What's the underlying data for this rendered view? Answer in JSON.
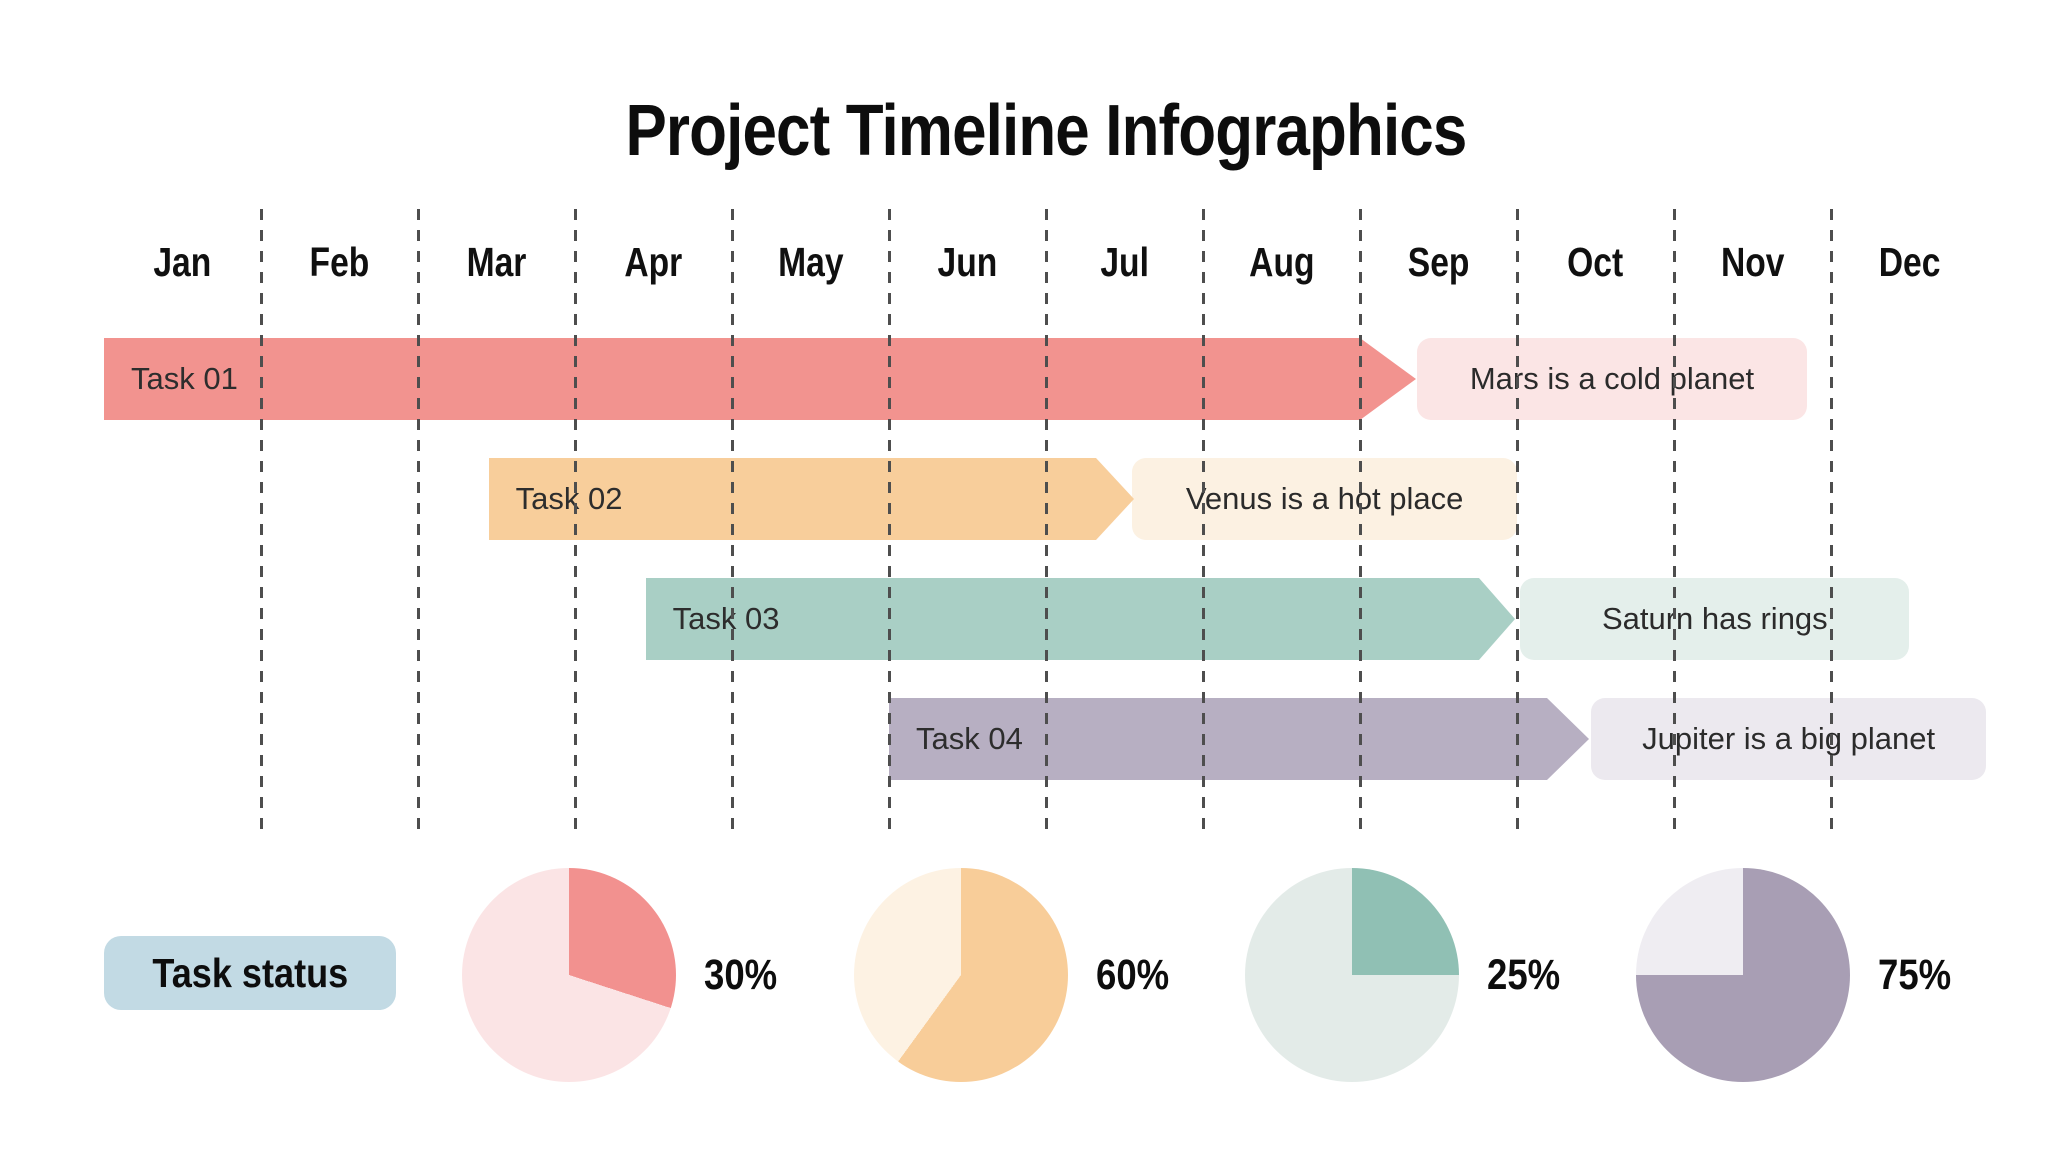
{
  "title": "Project Timeline Infographics",
  "status": {
    "label": "Task status",
    "badge_color": "#C2DAE4"
  },
  "grid_color": "#4E4E4E",
  "chart_data": [
    {
      "type": "gantt",
      "title": "Project Timeline Infographics",
      "x_axis": {
        "categories": [
          "Jan",
          "Feb",
          "Mar",
          "Apr",
          "May",
          "Jun",
          "Jul",
          "Aug",
          "Sep",
          "Oct",
          "Nov",
          "Dec"
        ],
        "range": [
          0,
          12
        ],
        "gridlines": "dashed vertical at each month boundary"
      },
      "tasks": [
        {
          "name": "Task 01",
          "start": 0.0,
          "end": 8.0,
          "bar_color": "#F2938F",
          "annotation": "Mars is a cold planet",
          "annotation_start": 8.36,
          "annotation_end": 10.85,
          "annotation_bg": "#FBE5E5"
        },
        {
          "name": "Task 02",
          "start": 2.45,
          "end": 6.32,
          "bar_color": "#F8CE9B",
          "annotation": "Venus is a hot place",
          "annotation_start": 6.55,
          "annotation_end": 9.0,
          "annotation_bg": "#FCF1E2"
        },
        {
          "name": "Task 03",
          "start": 3.45,
          "end": 8.76,
          "bar_color": "#A9CFC5",
          "annotation": "Saturn has rings",
          "annotation_start": 9.02,
          "annotation_end": 11.5,
          "annotation_bg": "#E4EFEB"
        },
        {
          "name": "Task 04",
          "start": 5.0,
          "end": 9.19,
          "bar_color": "#B7AFC2",
          "annotation": "Jupiter is a big planet",
          "annotation_start": 9.47,
          "annotation_end": 11.99,
          "annotation_bg": "#ECE9EF"
        }
      ]
    },
    {
      "type": "pie",
      "group_label": "Task status",
      "pies": [
        {
          "value": 30,
          "label": "30%",
          "color": "#F2918F",
          "remainder_color": "#FBE4E5",
          "start_angle_deg": 0,
          "direction": "clockwise"
        },
        {
          "value": 60,
          "label": "60%",
          "color": "#F8CD99",
          "remainder_color": "#FDF2E3",
          "start_angle_deg": 0,
          "direction": "clockwise"
        },
        {
          "value": 25,
          "label": "25%",
          "color": "#90C0B4",
          "remainder_color": "#E3EBE8",
          "start_angle_deg": 0,
          "direction": "clockwise"
        },
        {
          "value": 75,
          "label": "75%",
          "color": "#A89EB4",
          "remainder_color": "#EFEDF2",
          "start_angle_deg": 0,
          "direction": "clockwise"
        }
      ]
    }
  ]
}
